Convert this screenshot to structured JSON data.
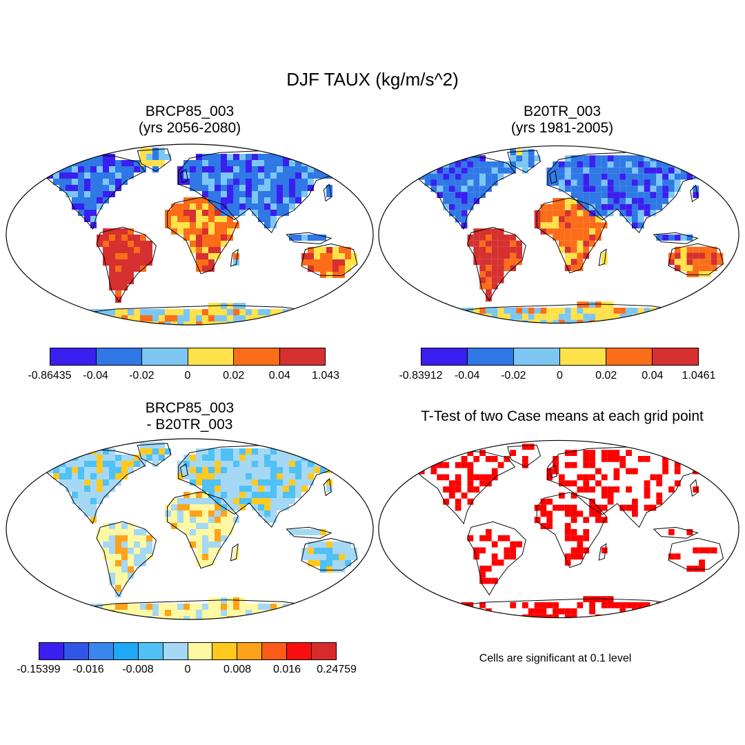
{
  "title": "DJF TAUX (kg/m/s^2)",
  "colors": {
    "ocean": "#ffffff",
    "coast": "#000000",
    "sig": "#ff0000"
  },
  "panels": [
    {
      "id": "p1",
      "title_line1": "BRCP85_003",
      "title_line2": "(yrs 2056-2080)",
      "colorbar": {
        "colors": [
          "#3a1ff0",
          "#2f78e6",
          "#7cc6f4",
          "#ffe24a",
          "#fb6d19",
          "#d63030"
        ],
        "labels": [
          "-0.86435",
          "-0.04",
          "-0.02",
          "0",
          "0.02",
          "0.04",
          "1.043"
        ]
      }
    },
    {
      "id": "p2",
      "title_line1": "B20TR_003",
      "title_line2": "(yrs 1981-2005)",
      "colorbar": {
        "colors": [
          "#3a1ff0",
          "#2f78e6",
          "#7cc6f4",
          "#ffe24a",
          "#fb6d19",
          "#d63030"
        ],
        "labels": [
          "-0.83912",
          "-0.04",
          "-0.02",
          "0",
          "0.02",
          "0.04",
          "1.0461"
        ]
      }
    },
    {
      "id": "p3",
      "title_line1": "BRCP85_003",
      "title_line2": "- B20TR_003",
      "colorbar": {
        "colors": [
          "#3a1ff0",
          "#3055e8",
          "#3a86ee",
          "#1ea8f5",
          "#4fc1f5",
          "#a4d8f5",
          "#fdf8a2",
          "#ffc91e",
          "#fea21a",
          "#fb5a18",
          "#f80e0e",
          "#d82a2a"
        ],
        "labels": [
          "-0.15399",
          "-0.016",
          "-0.008",
          "0",
          "0.008",
          "0.016",
          "0.24759"
        ]
      }
    },
    {
      "id": "p4",
      "title_line1": "T-Test of two Case means at each grid point",
      "title_line2": "",
      "note": "Cells are significant at 0.1 level"
    }
  ]
}
